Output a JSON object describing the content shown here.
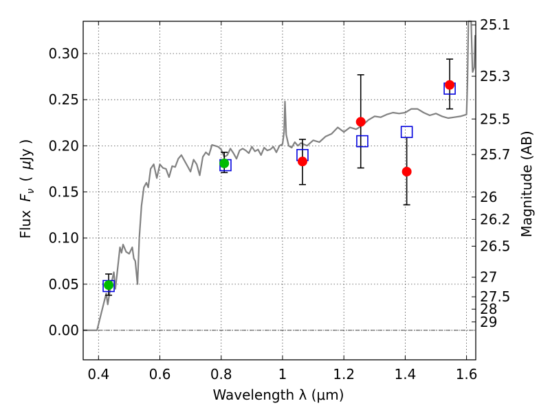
{
  "chart_data": {
    "type": "scatter",
    "xlabel": "Wavelength  λ (μm)",
    "ylabel": "Flux  F_ν  ( μJy )",
    "ylabel_parts": {
      "prefix": "Flux",
      "symbol": "F",
      "subscript": "ν",
      "open": "(",
      "mu": "μ",
      "unit": "Jy",
      "close": ")"
    },
    "ylabel_right": "Magnitude (AB)",
    "xlim": [
      0.35,
      1.63
    ],
    "ylim": [
      -0.032,
      0.335
    ],
    "x_ticks": [
      0.4,
      0.6,
      0.8,
      1.0,
      1.2,
      1.4,
      1.6
    ],
    "x_tick_labels": [
      "0.4",
      "0.6",
      "0.8",
      "1",
      "1.2",
      "1.4",
      "1.6"
    ],
    "y_ticks": [
      0.0,
      0.05,
      0.1,
      0.15,
      0.2,
      0.25,
      0.3
    ],
    "y_tick_labels": [
      "0.00",
      "0.05",
      "0.10",
      "0.15",
      "0.20",
      "0.25",
      "0.30"
    ],
    "magnitude_ticks": [
      25.1,
      25.3,
      25.5,
      25.7,
      26,
      26.2,
      26.5,
      27,
      27.5,
      28,
      29
    ],
    "magnitude_tick_labels": [
      "25.1",
      "25.3",
      "25.5",
      "25.7",
      "26",
      "26.2",
      "26.5",
      "27",
      "27.5",
      "28",
      "29"
    ],
    "grid": true,
    "reference_line_y": 0.0,
    "colors": {
      "model": "#808080",
      "observed": "#ff0000",
      "observed_low": "#00bb00",
      "model_photometry": "#0000dd",
      "errorbar": "#000000"
    },
    "series": [
      {
        "kind": "line",
        "points": [
          [
            0.35,
            0.0
          ],
          [
            0.395,
            0.0
          ],
          [
            0.41,
            0.02
          ],
          [
            0.425,
            0.04
          ],
          [
            0.43,
            0.028
          ],
          [
            0.44,
            0.048
          ],
          [
            0.45,
            0.063
          ],
          [
            0.455,
            0.045
          ],
          [
            0.46,
            0.06
          ],
          [
            0.47,
            0.09
          ],
          [
            0.475,
            0.084
          ],
          [
            0.48,
            0.093
          ],
          [
            0.49,
            0.085
          ],
          [
            0.5,
            0.083
          ],
          [
            0.51,
            0.09
          ],
          [
            0.515,
            0.078
          ],
          [
            0.52,
            0.075
          ],
          [
            0.527,
            0.05
          ],
          [
            0.533,
            0.1
          ],
          [
            0.54,
            0.135
          ],
          [
            0.548,
            0.155
          ],
          [
            0.556,
            0.16
          ],
          [
            0.562,
            0.155
          ],
          [
            0.57,
            0.175
          ],
          [
            0.58,
            0.18
          ],
          [
            0.59,
            0.165
          ],
          [
            0.6,
            0.18
          ],
          [
            0.61,
            0.176
          ],
          [
            0.62,
            0.175
          ],
          [
            0.63,
            0.166
          ],
          [
            0.64,
            0.178
          ],
          [
            0.65,
            0.177
          ],
          [
            0.66,
            0.186
          ],
          [
            0.67,
            0.19
          ],
          [
            0.68,
            0.184
          ],
          [
            0.69,
            0.178
          ],
          [
            0.7,
            0.172
          ],
          [
            0.71,
            0.185
          ],
          [
            0.72,
            0.18
          ],
          [
            0.73,
            0.168
          ],
          [
            0.74,
            0.188
          ],
          [
            0.75,
            0.193
          ],
          [
            0.76,
            0.19
          ],
          [
            0.77,
            0.201
          ],
          [
            0.78,
            0.2
          ],
          [
            0.79,
            0.199
          ],
          [
            0.8,
            0.196
          ],
          [
            0.81,
            0.188
          ],
          [
            0.82,
            0.19
          ],
          [
            0.83,
            0.197
          ],
          [
            0.84,
            0.192
          ],
          [
            0.85,
            0.186
          ],
          [
            0.86,
            0.195
          ],
          [
            0.87,
            0.197
          ],
          [
            0.88,
            0.195
          ],
          [
            0.89,
            0.192
          ],
          [
            0.9,
            0.199
          ],
          [
            0.91,
            0.194
          ],
          [
            0.92,
            0.196
          ],
          [
            0.93,
            0.19
          ],
          [
            0.94,
            0.198
          ],
          [
            0.95,
            0.195
          ],
          [
            0.96,
            0.196
          ],
          [
            0.97,
            0.199
          ],
          [
            0.98,
            0.193
          ],
          [
            0.99,
            0.2
          ],
          [
            1.0,
            0.202
          ],
          [
            1.005,
            0.215
          ],
          [
            1.008,
            0.248
          ],
          [
            1.012,
            0.212
          ],
          [
            1.02,
            0.2
          ],
          [
            1.03,
            0.198
          ],
          [
            1.04,
            0.204
          ],
          [
            1.05,
            0.2
          ],
          [
            1.06,
            0.203
          ],
          [
            1.08,
            0.2
          ],
          [
            1.1,
            0.206
          ],
          [
            1.12,
            0.204
          ],
          [
            1.14,
            0.21
          ],
          [
            1.16,
            0.213
          ],
          [
            1.18,
            0.22
          ],
          [
            1.2,
            0.215
          ],
          [
            1.22,
            0.22
          ],
          [
            1.24,
            0.218
          ],
          [
            1.26,
            0.222
          ],
          [
            1.28,
            0.228
          ],
          [
            1.3,
            0.232
          ],
          [
            1.32,
            0.231
          ],
          [
            1.34,
            0.234
          ],
          [
            1.36,
            0.236
          ],
          [
            1.38,
            0.235
          ],
          [
            1.4,
            0.236
          ],
          [
            1.42,
            0.24
          ],
          [
            1.44,
            0.24
          ],
          [
            1.46,
            0.236
          ],
          [
            1.48,
            0.233
          ],
          [
            1.5,
            0.235
          ],
          [
            1.52,
            0.232
          ],
          [
            1.54,
            0.23
          ],
          [
            1.56,
            0.231
          ],
          [
            1.58,
            0.232
          ],
          [
            1.6,
            0.234
          ],
          [
            1.603,
            0.27
          ],
          [
            1.606,
            0.335
          ],
          [
            1.615,
            0.335
          ],
          [
            1.619,
            0.285
          ],
          [
            1.62,
            0.28
          ],
          [
            1.625,
            0.285
          ],
          [
            1.628,
            0.32
          ]
        ]
      },
      {
        "kind": "errorbar-points",
        "points": [
          {
            "x": 1.065,
            "y": 0.183,
            "yerr": [
              0.025,
              0.024
            ]
          },
          {
            "x": 1.255,
            "y": 0.226,
            "yerr": [
              0.05,
              0.051
            ]
          },
          {
            "x": 1.405,
            "y": 0.172,
            "yerr": [
              0.036,
              0.037
            ]
          },
          {
            "x": 1.545,
            "y": 0.266,
            "yerr": [
              0.026,
              0.028
            ]
          }
        ]
      },
      {
        "kind": "errorbar-points",
        "points": [
          {
            "x": 0.433,
            "y": 0.049,
            "yerr": [
              0.011,
              0.012
            ]
          },
          {
            "x": 0.81,
            "y": 0.181,
            "yerr": [
              0.01,
              0.012
            ]
          }
        ]
      },
      {
        "kind": "open-squares",
        "points": [
          {
            "x": 0.433,
            "y": 0.048
          },
          {
            "x": 0.814,
            "y": 0.179
          },
          {
            "x": 1.065,
            "y": 0.19
          },
          {
            "x": 1.26,
            "y": 0.205
          },
          {
            "x": 1.405,
            "y": 0.215
          },
          {
            "x": 1.545,
            "y": 0.262
          }
        ]
      }
    ]
  }
}
